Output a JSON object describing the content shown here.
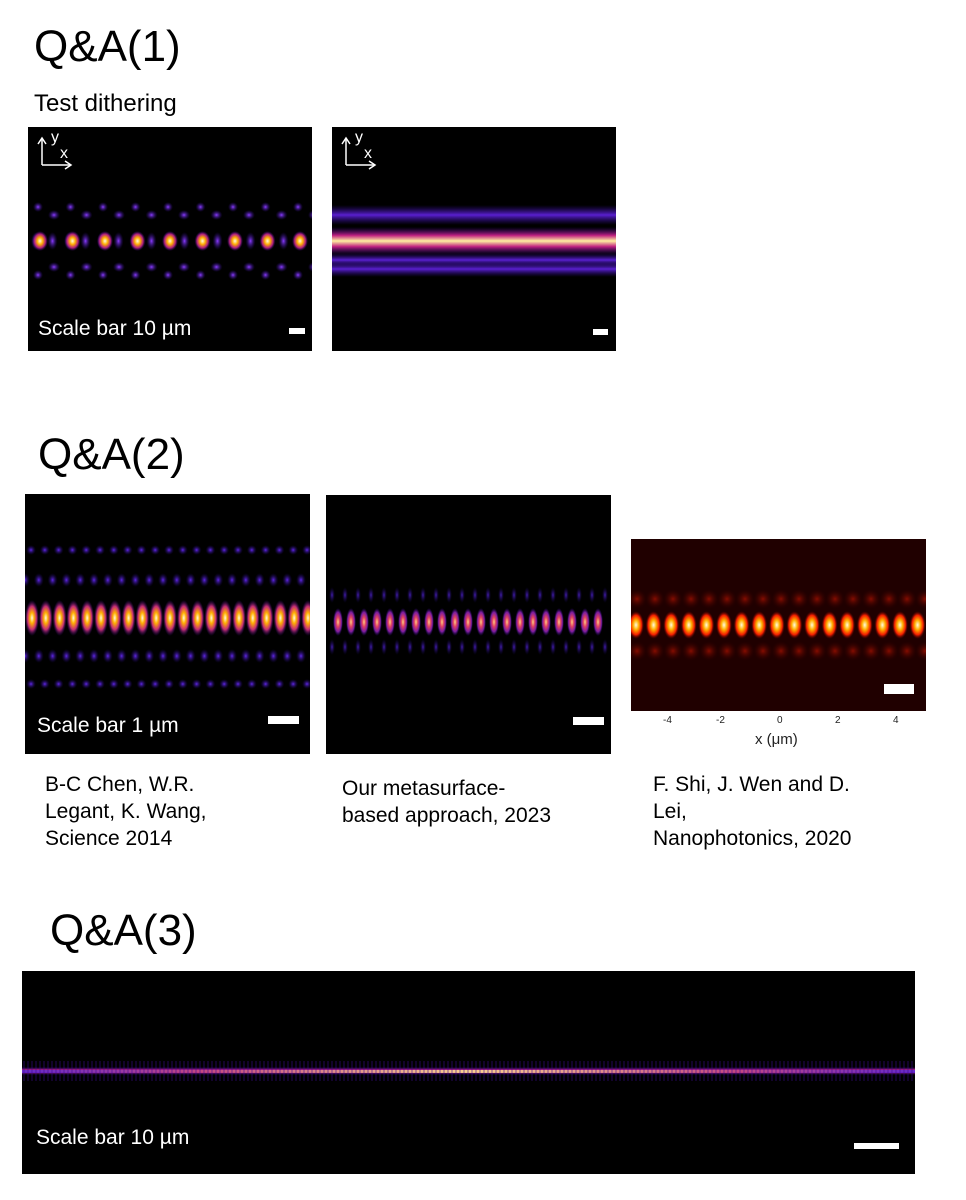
{
  "sections": [
    {
      "heading": "Q&A(1)",
      "subheading": "Test dithering"
    },
    {
      "heading": "Q&A(2)"
    },
    {
      "heading": "Q&A(3)"
    }
  ],
  "qa1": {
    "panels": [
      {
        "axes": {
          "y": "y",
          "x": "x"
        },
        "scale_text": "Scale bar 10 µm"
      },
      {
        "axes": {
          "y": "y",
          "x": "x"
        },
        "scale_text": ""
      }
    ]
  },
  "qa2": {
    "panels": [
      {
        "scale_text": "Scale bar 1 µm",
        "caption": "B-C Chen, W.R.\nLegant, K. Wang,\nScience 2014"
      },
      {
        "scale_text": "",
        "caption": "Our metasurface-\nbased approach, 2023"
      },
      {
        "scale_text": "",
        "caption": "F. Shi, J. Wen and D.\nLei,\nNanophotonics, 2020",
        "x_ticks": [
          "-4",
          "-2",
          "0",
          "2",
          "4"
        ],
        "x_label": "x (μm)"
      }
    ]
  },
  "qa3": {
    "scale_text": "Scale bar 10 µm"
  },
  "colors": {
    "inferno_hot": "#fff6b0",
    "inferno_mid": "#ff7a00",
    "inferno_low": "#b1178f",
    "purple": "#5a1fd0",
    "red_hot": "#ff2a00"
  }
}
